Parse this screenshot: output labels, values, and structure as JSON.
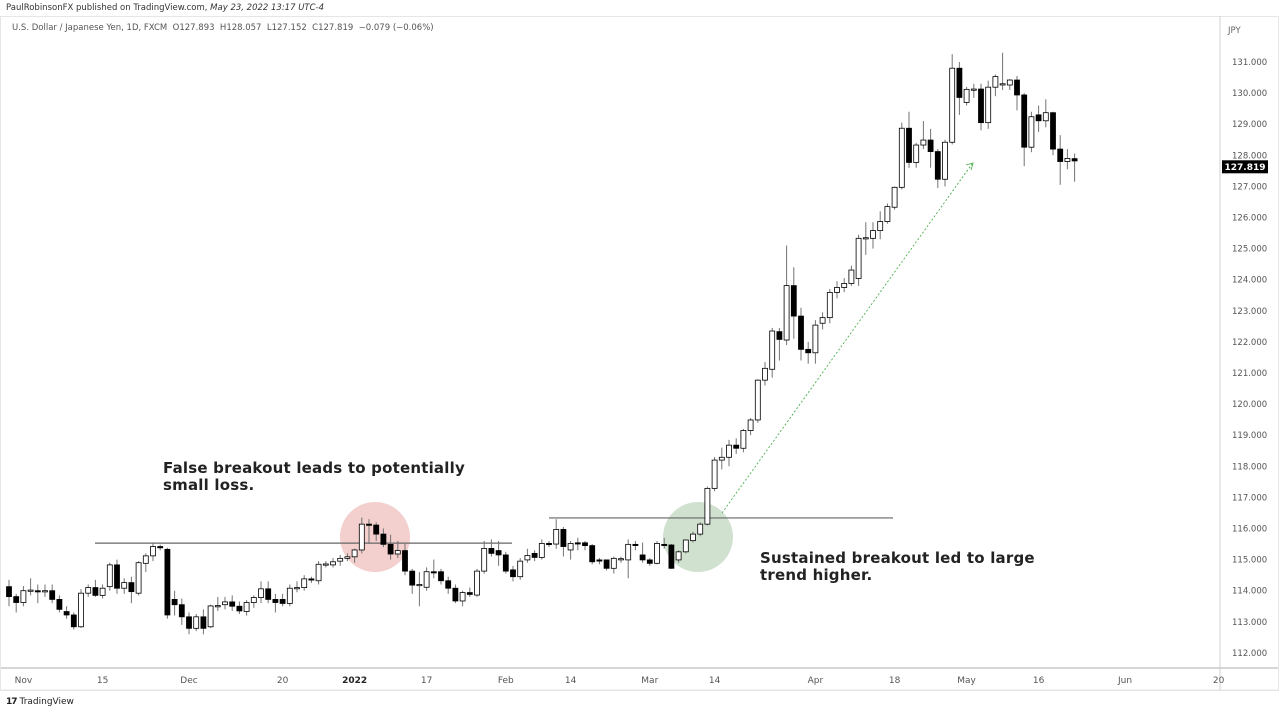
{
  "header": {
    "publisher": "PaulRobinsonFX published on TradingView.com,",
    "datetime": "May 23, 2022 13:17 UTC-4",
    "symbol": "U.S. Dollar / Japanese Yen, 1D, FXCM",
    "open": "O127.893",
    "high": "H128.057",
    "low": "L127.152",
    "close": "C127.819",
    "change": "−0.079 (−0.06%)"
  },
  "footer": {
    "brand": "TradingView",
    "logo_icon": "tradingview-logo-icon"
  },
  "chart_data": {
    "type": "candlestick",
    "symbol": "USDJPY",
    "timeframe": "1D",
    "currency_label": "JPY",
    "ylim": [
      111.7,
      131.7
    ],
    "y_ticks": [
      "131.000",
      "130.000",
      "129.000",
      "128.000",
      "127.000",
      "126.000",
      "125.000",
      "124.000",
      "123.000",
      "122.000",
      "121.000",
      "120.000",
      "119.000",
      "118.000",
      "117.000",
      "116.000",
      "115.000",
      "114.000",
      "113.000",
      "112.000"
    ],
    "x_ticks": [
      {
        "label": "Nov",
        "bar": 2
      },
      {
        "label": "15",
        "bar": 13
      },
      {
        "label": "Dec",
        "bar": 25
      },
      {
        "label": "20",
        "bar": 38
      },
      {
        "label": "2022",
        "bar": 48,
        "bold": true
      },
      {
        "label": "17",
        "bar": 58
      },
      {
        "label": "Feb",
        "bar": 69
      },
      {
        "label": "14",
        "bar": 78
      },
      {
        "label": "Mar",
        "bar": 89
      },
      {
        "label": "14",
        "bar": 98
      },
      {
        "label": "Apr",
        "bar": 112
      },
      {
        "label": "18",
        "bar": 123
      },
      {
        "label": "May",
        "bar": 133
      },
      {
        "label": "16",
        "bar": 143
      },
      {
        "label": "Jun",
        "bar": 155
      },
      {
        "label": "20",
        "bar": 168
      }
    ],
    "last_price": "127.819",
    "colors": {
      "up_fill": "#ffffff",
      "down_fill": "#000000",
      "border": "#000000",
      "wick": "#737373",
      "last_price_bg": "#000000",
      "false_breakout_circle": "#e8a09c",
      "sustained_breakout_circle": "#a9c9a9",
      "arrow": "#4caf50",
      "level_line": "#666666"
    },
    "ohlc": [
      [
        114.13,
        114.35,
        113.5,
        113.81
      ],
      [
        113.81,
        113.9,
        113.3,
        113.62
      ],
      [
        113.62,
        114.15,
        113.5,
        114.0
      ],
      [
        114.0,
        114.4,
        113.85,
        114.02
      ],
      [
        114.0,
        114.2,
        113.6,
        113.98
      ],
      [
        113.98,
        114.2,
        113.8,
        114.0
      ],
      [
        114.0,
        114.2,
        113.6,
        113.72
      ],
      [
        113.72,
        113.85,
        113.3,
        113.4
      ],
      [
        113.33,
        113.5,
        113.1,
        113.22
      ],
      [
        113.22,
        113.3,
        112.75,
        112.84
      ],
      [
        112.84,
        114.05,
        112.8,
        113.92
      ],
      [
        113.92,
        114.2,
        113.8,
        114.1
      ],
      [
        114.1,
        114.35,
        113.8,
        113.85
      ],
      [
        113.85,
        114.2,
        113.75,
        114.08
      ],
      [
        114.13,
        114.9,
        114.0,
        114.83
      ],
      [
        114.83,
        115.0,
        113.9,
        114.08
      ],
      [
        114.08,
        114.4,
        113.9,
        114.26
      ],
      [
        114.26,
        114.45,
        113.6,
        113.97
      ],
      [
        113.92,
        114.95,
        113.85,
        114.9
      ],
      [
        114.88,
        115.2,
        114.6,
        115.12
      ],
      [
        115.12,
        115.52,
        114.95,
        115.42
      ],
      [
        115.42,
        115.48,
        115.3,
        115.38
      ],
      [
        115.33,
        115.38,
        113.1,
        113.22
      ],
      [
        113.72,
        114.0,
        113.2,
        113.55
      ],
      [
        113.55,
        113.75,
        112.9,
        113.16
      ],
      [
        113.16,
        113.3,
        112.6,
        112.79
      ],
      [
        112.79,
        113.25,
        112.7,
        113.16
      ],
      [
        113.16,
        113.4,
        112.6,
        112.79
      ],
      [
        112.84,
        113.55,
        112.8,
        113.51
      ],
      [
        113.51,
        113.8,
        113.35,
        113.52
      ],
      [
        113.55,
        113.8,
        113.4,
        113.64
      ],
      [
        113.64,
        113.85,
        113.35,
        113.5
      ],
      [
        113.5,
        113.65,
        113.25,
        113.35
      ],
      [
        113.33,
        113.7,
        113.2,
        113.62
      ],
      [
        113.62,
        113.85,
        113.45,
        113.78
      ],
      [
        113.78,
        114.3,
        113.6,
        114.06
      ],
      [
        114.06,
        114.3,
        113.6,
        113.72
      ],
      [
        113.72,
        113.9,
        113.3,
        113.62
      ],
      [
        113.72,
        113.9,
        113.5,
        113.59
      ],
      [
        113.59,
        114.2,
        113.5,
        114.08
      ],
      [
        114.08,
        114.3,
        113.95,
        114.1
      ],
      [
        114.1,
        114.5,
        114.0,
        114.38
      ],
      [
        114.38,
        114.45,
        114.25,
        114.36
      ],
      [
        114.32,
        114.95,
        114.2,
        114.85
      ],
      [
        114.85,
        114.95,
        114.75,
        114.86
      ],
      [
        114.83,
        115.05,
        114.75,
        114.93
      ],
      [
        114.95,
        115.15,
        114.8,
        115.04
      ],
      [
        115.04,
        115.2,
        114.95,
        115.09
      ],
      [
        115.09,
        115.35,
        114.9,
        115.31
      ],
      [
        115.31,
        116.35,
        115.2,
        116.14
      ],
      [
        116.14,
        116.3,
        115.5,
        116.12
      ],
      [
        116.11,
        116.2,
        115.6,
        115.82
      ],
      [
        115.82,
        116.0,
        115.4,
        115.49
      ],
      [
        115.49,
        115.8,
        115.0,
        115.18
      ],
      [
        115.18,
        115.6,
        115.05,
        115.29
      ],
      [
        115.29,
        115.5,
        114.5,
        114.63
      ],
      [
        114.63,
        114.7,
        113.9,
        114.18
      ],
      [
        114.18,
        114.6,
        113.5,
        114.2
      ],
      [
        114.11,
        114.75,
        114.0,
        114.61
      ],
      [
        114.61,
        115.0,
        114.4,
        114.6
      ],
      [
        114.61,
        114.7,
        114.2,
        114.32
      ],
      [
        114.32,
        114.45,
        113.9,
        114.08
      ],
      [
        114.08,
        114.2,
        113.6,
        113.67
      ],
      [
        113.67,
        114.0,
        113.5,
        113.94
      ],
      [
        113.94,
        114.1,
        113.8,
        113.88
      ],
      [
        113.86,
        114.7,
        113.8,
        114.63
      ],
      [
        114.63,
        115.6,
        114.55,
        115.36
      ],
      [
        115.36,
        115.65,
        115.1,
        115.2
      ],
      [
        115.29,
        115.6,
        114.8,
        115.15
      ],
      [
        115.15,
        115.25,
        114.55,
        114.63
      ],
      [
        114.67,
        114.8,
        114.3,
        114.45
      ],
      [
        114.45,
        115.05,
        114.35,
        114.95
      ],
      [
        114.99,
        115.35,
        114.9,
        115.13
      ],
      [
        115.2,
        115.3,
        114.95,
        115.07
      ],
      [
        115.07,
        115.65,
        115.0,
        115.52
      ],
      [
        115.52,
        115.6,
        115.4,
        115.5
      ],
      [
        115.5,
        116.3,
        115.35,
        115.97
      ],
      [
        115.97,
        116.05,
        115.1,
        115.42
      ],
      [
        115.31,
        115.6,
        115.0,
        115.52
      ],
      [
        115.54,
        115.7,
        115.3,
        115.52
      ],
      [
        115.54,
        115.6,
        115.3,
        115.45
      ],
      [
        115.45,
        115.5,
        114.85,
        114.93
      ],
      [
        114.99,
        115.05,
        114.85,
        114.98
      ],
      [
        114.99,
        115.0,
        114.65,
        114.72
      ],
      [
        114.72,
        115.1,
        114.55,
        115.04
      ],
      [
        115.02,
        115.1,
        114.9,
        115.03
      ],
      [
        114.99,
        115.65,
        114.4,
        115.49
      ],
      [
        115.49,
        115.6,
        115.3,
        115.48
      ],
      [
        115.15,
        115.55,
        114.9,
        114.99
      ],
      [
        114.99,
        115.05,
        114.8,
        114.88
      ],
      [
        114.88,
        115.6,
        114.85,
        115.52
      ],
      [
        115.49,
        115.7,
        115.35,
        115.47
      ],
      [
        115.47,
        115.5,
        114.7,
        114.72
      ],
      [
        114.99,
        115.3,
        114.9,
        115.25
      ],
      [
        115.25,
        115.65,
        115.2,
        115.63
      ],
      [
        115.61,
        115.9,
        115.55,
        115.82
      ],
      [
        115.82,
        116.2,
        115.75,
        116.14
      ],
      [
        116.14,
        117.35,
        116.1,
        117.29
      ],
      [
        117.29,
        118.3,
        117.2,
        118.2
      ],
      [
        118.2,
        118.6,
        117.9,
        118.29
      ],
      [
        118.29,
        118.85,
        118.0,
        118.68
      ],
      [
        118.68,
        118.9,
        118.4,
        118.58
      ],
      [
        118.58,
        119.2,
        118.45,
        119.15
      ],
      [
        119.15,
        119.55,
        119.0,
        119.49
      ],
      [
        119.49,
        120.8,
        119.4,
        120.77
      ],
      [
        120.77,
        121.35,
        120.6,
        121.15
      ],
      [
        121.12,
        122.45,
        120.85,
        122.35
      ],
      [
        122.33,
        122.45,
        121.4,
        122.08
      ],
      [
        122.06,
        125.1,
        121.9,
        123.81
      ],
      [
        123.81,
        124.4,
        122.1,
        122.83
      ],
      [
        122.83,
        123.1,
        121.4,
        121.76
      ],
      [
        121.76,
        122.0,
        121.3,
        121.65
      ],
      [
        121.65,
        122.7,
        121.3,
        122.54
      ],
      [
        122.6,
        122.95,
        122.4,
        122.78
      ],
      [
        122.78,
        123.7,
        122.6,
        123.59
      ],
      [
        123.59,
        123.95,
        123.4,
        123.75
      ],
      [
        123.75,
        124.05,
        123.6,
        123.88
      ],
      [
        123.88,
        124.45,
        123.8,
        124.31
      ],
      [
        124.04,
        125.45,
        123.8,
        125.33
      ],
      [
        125.33,
        125.85,
        124.8,
        125.35
      ],
      [
        125.33,
        125.85,
        125.0,
        125.58
      ],
      [
        125.58,
        126.2,
        125.3,
        125.87
      ],
      [
        125.87,
        126.45,
        125.8,
        126.35
      ],
      [
        126.33,
        127.0,
        126.25,
        126.97
      ],
      [
        126.97,
        129.05,
        126.9,
        128.87
      ],
      [
        128.87,
        129.4,
        127.6,
        127.77
      ],
      [
        127.77,
        128.4,
        127.6,
        128.33
      ],
      [
        128.33,
        129.1,
        128.2,
        128.49
      ],
      [
        128.49,
        128.85,
        127.6,
        128.12
      ],
      [
        128.12,
        128.2,
        126.95,
        127.23
      ],
      [
        127.23,
        128.5,
        127.0,
        128.42
      ],
      [
        128.42,
        131.25,
        128.35,
        130.8
      ],
      [
        130.8,
        131.0,
        129.3,
        129.86
      ],
      [
        129.7,
        130.2,
        129.6,
        130.12
      ],
      [
        130.12,
        130.3,
        129.85,
        130.13
      ],
      [
        130.13,
        130.3,
        128.8,
        129.05
      ],
      [
        129.05,
        130.4,
        128.85,
        130.19
      ],
      [
        130.19,
        130.6,
        129.9,
        130.53
      ],
      [
        130.29,
        131.3,
        130.1,
        130.3
      ],
      [
        130.26,
        130.45,
        130.1,
        130.42
      ],
      [
        130.42,
        130.55,
        129.45,
        129.94
      ],
      [
        129.94,
        130.0,
        127.65,
        128.26
      ],
      [
        128.26,
        129.4,
        128.1,
        129.24
      ],
      [
        129.3,
        129.6,
        128.75,
        129.11
      ],
      [
        129.11,
        129.8,
        128.9,
        129.37
      ],
      [
        129.37,
        129.4,
        128.0,
        128.2
      ],
      [
        128.2,
        128.65,
        127.05,
        127.8
      ],
      [
        127.8,
        128.2,
        127.55,
        127.9
      ],
      [
        127.893,
        128.057,
        127.152,
        127.819
      ]
    ],
    "levels": [
      {
        "name": "false-breakout-level",
        "price": 115.53
      },
      {
        "name": "sustained-breakout-level",
        "price": 116.34
      }
    ],
    "annotations": [
      {
        "text_line1": "False breakout leads to potentially",
        "text_line2": "small loss."
      },
      {
        "text_line1": "Sustained breakout led to large",
        "text_line2": "trend higher."
      }
    ]
  }
}
